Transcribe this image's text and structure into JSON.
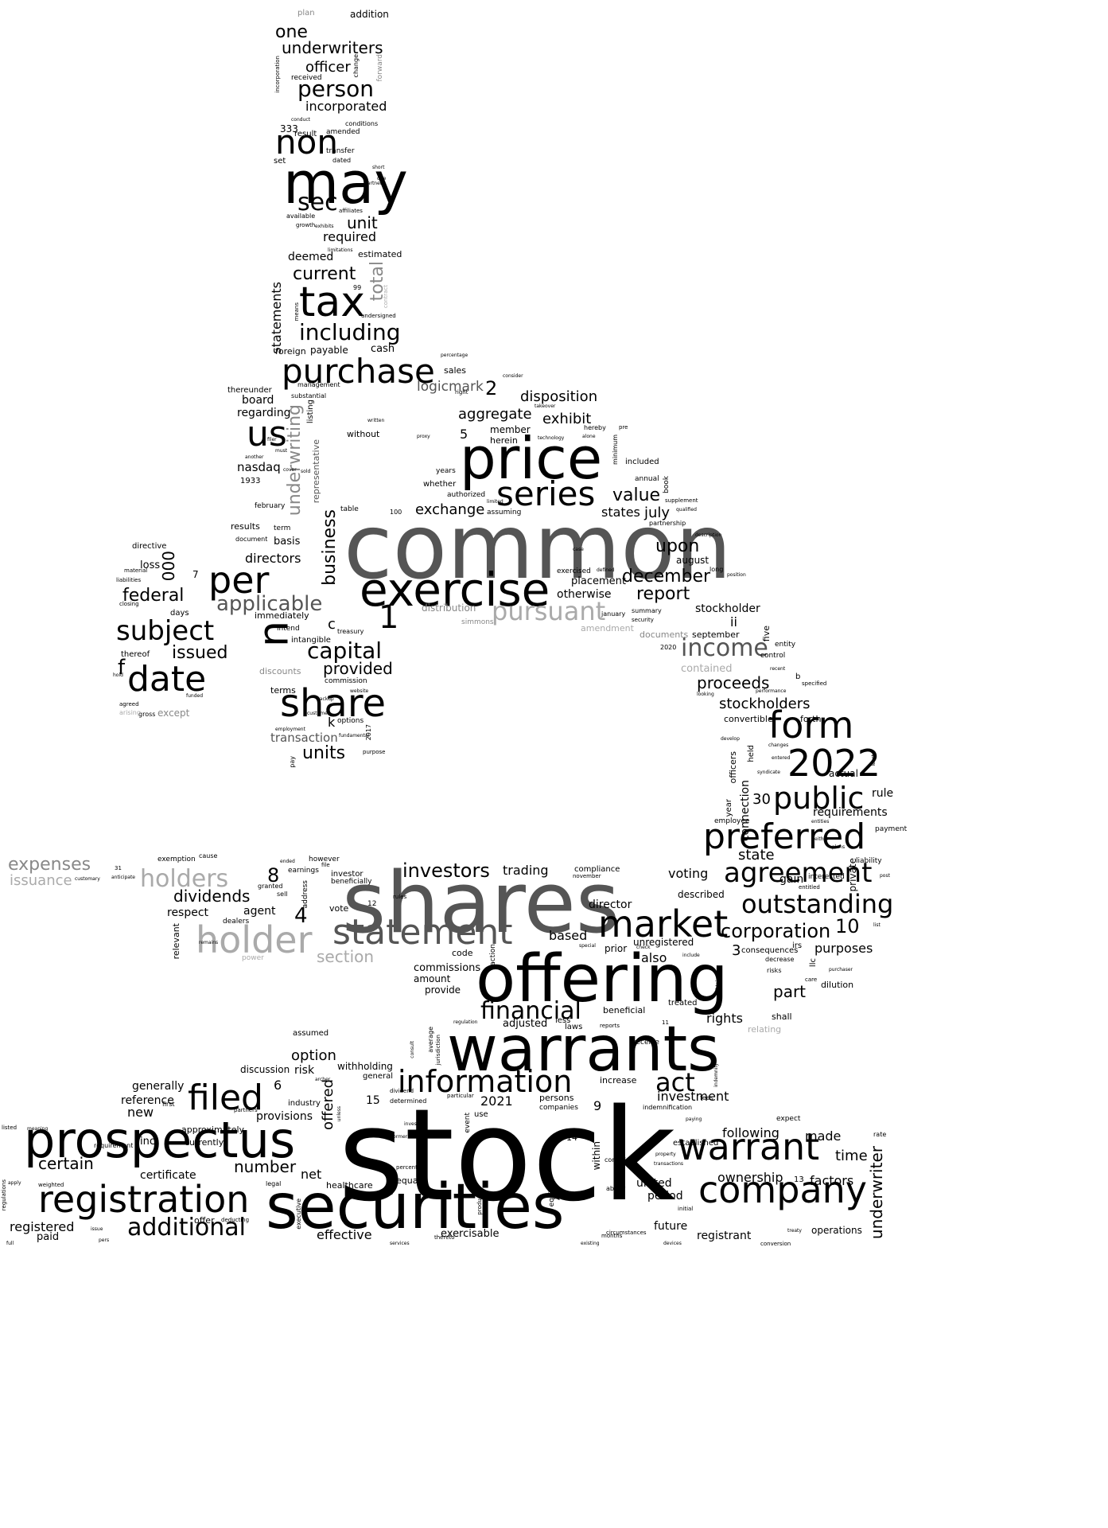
{
  "colors": {
    "background": "#ffffff",
    "ink": "#000000",
    "gray_dark": "#555555",
    "gray_mid": "#888888",
    "gray_light": "#aaaaaa"
  },
  "words": {
    "stock": "stock",
    "common": "common",
    "shares": "shares",
    "offering": "offering",
    "securities": "securities",
    "warrants": "warrants",
    "price": "price",
    "may": "may",
    "prospectus": "prospectus",
    "exercise": "exercise",
    "registration": "registration",
    "tax": "tax",
    "purchase": "purchase",
    "share": "share",
    "us": "us",
    "u": "u",
    "date": "date",
    "per": "per",
    "non": "non",
    "series": "series",
    "statement": "statement",
    "holder": "holder",
    "market": "market",
    "company": "company",
    "warrant": "warrant",
    "preferred": "preferred",
    "agreement": "agreement",
    "form": "form",
    "y2022": "2022",
    "public": "public",
    "filed": "filed",
    "information": "information",
    "outstanding": "outstanding",
    "subject": "subject",
    "pursuant": "pursuant",
    "income": "income",
    "including": "including",
    "capital": "capital",
    "additional": "additional",
    "financial": "financial",
    "investors": "investors",
    "act": "act",
    "holders": "holders",
    "applicable": "applicable",
    "corporation": "corporation",
    "one": "one",
    "underwriters": "underwriters",
    "officer": "officer",
    "person": "person",
    "incorporated": "incorporated",
    "sec": "sec",
    "unit": "unit",
    "required": "required",
    "current": "current",
    "total": "total",
    "statements": "statements",
    "payable": "payable",
    "cash": "cash",
    "foreign": "foreign",
    "deemed": "deemed",
    "estimated": "estimated",
    "n333": "333",
    "result": "result",
    "amended": "amended",
    "conditions": "conditions",
    "transfer": "transfer",
    "dated": "dated",
    "set": "set",
    "addition": "addition",
    "plan": "plan",
    "received": "received",
    "change": "change",
    "forward": "forward",
    "incorporation": "incorporation",
    "conduct": "conduct",
    "available": "available",
    "growth": "growth",
    "exhibits": "exhibits",
    "affiliates": "affiliates",
    "limitations": "limitations",
    "undersigned": "undersigned",
    "means": "means",
    "n99": "99",
    "contract": "contract",
    "logicmark": "logicmark",
    "n2": "2",
    "disposition": "disposition",
    "aggregate": "aggregate",
    "exhibit": "exhibit",
    "member": "member",
    "herein": "herein",
    "n5": "5",
    "hereby": "hereby",
    "sales": "sales",
    "management": "management",
    "board": "board",
    "thereunder": "thereunder",
    "substantial": "substantial",
    "regarding": "regarding",
    "underwriting": "underwriting",
    "representative": "representative",
    "listing": "listing",
    "without": "without",
    "business": "business",
    "nasdaq": "nasdaq",
    "n1933": "1933",
    "february": "february",
    "results": "results",
    "basis": "basis",
    "term": "term",
    "directors": "directors",
    "document": "document",
    "value": "value",
    "exchange": "exchange",
    "states": "states",
    "july": "july",
    "upon": "upon",
    "december": "december",
    "report": "report",
    "august": "august",
    "stockholder": "stockholder",
    "ii": "ii",
    "included": "included",
    "annual": "annual",
    "authorized": "authorized",
    "whether": "whether",
    "years": "years",
    "table": "table",
    "assuming": "assuming",
    "n100": "100",
    "partnership": "partnership",
    "book": "book",
    "minimum": "minimum",
    "n000": "000",
    "federal": "federal",
    "loss": "loss",
    "directive": "directive",
    "days": "days",
    "n7": "7",
    "f": "f",
    "issued": "issued",
    "n1": "1",
    "c": "c",
    "provided": "provided",
    "discounts": "discounts",
    "commission": "commission",
    "immediately": "immediately",
    "intend": "intend",
    "treasury": "treasury",
    "intangible": "intangible",
    "distribution": "distribution",
    "simmons": "simmons",
    "amendment": "amendment",
    "otherwise": "otherwise",
    "exercised": "exercised",
    "placement": "placement",
    "january": "january",
    "summary": "summary",
    "documents": "documents",
    "september": "september",
    "n2020": "2020",
    "contained": "contained",
    "proceeds": "proceeds",
    "stockholders": "stockholders",
    "convertible": "convertible",
    "forth": "forth",
    "five": "five",
    "entity": "entity",
    "control": "control",
    "terms": "terms",
    "transaction": "transaction",
    "units": "units",
    "k": "k",
    "options": "options",
    "n2017": "2017",
    "purpose": "purpose",
    "pay": "pay",
    "except": "except",
    "gross": "gross",
    "agreed": "agreed",
    "thereof": "thereof",
    "arising": "arising",
    "officers": "officers",
    "held": "held",
    "connection": "connection",
    "year": "year",
    "n30": "30",
    "actual": "actual",
    "rule": "rule",
    "requirements": "requirements",
    "employee": "employee",
    "state": "state",
    "gain": "gain",
    "interested": "interested",
    "private": "private",
    "liability": "liability",
    "payment": "payment",
    "voting": "voting",
    "described": "described",
    "n10": "10",
    "unregistered": "unregistered",
    "purposes": "purposes",
    "consequences": "consequences",
    "irs": "irs",
    "llc": "llc",
    "decrease": "decrease",
    "risks": "risks",
    "dilution": "dilution",
    "part": "part",
    "treated": "treated",
    "rights": "rights",
    "shall": "shall",
    "relating": "relating",
    "expenses": "expenses",
    "issuance": "issuance",
    "exemption": "exemption",
    "cause": "cause",
    "however": "however",
    "file": "file",
    "earnings": "earnings",
    "investor": "investor",
    "beneficially": "beneficially",
    "n8": "8",
    "granted": "granted",
    "sell": "sell",
    "dividends": "dividends",
    "agent": "agent",
    "respect": "respect",
    "n4": "4",
    "dealers": "dealers",
    "relevant": "relevant",
    "address": "address",
    "vote": "vote",
    "trading": "trading",
    "compliance": "compliance",
    "november": "november",
    "director": "director",
    "based": "based",
    "prior": "prior",
    "also": "also",
    "n3": "3",
    "section": "section",
    "code": "code",
    "commissions": "commissions",
    "amount": "amount",
    "provide": "provide",
    "power": "power",
    "adjusted": "adjusted",
    "laws": "laws",
    "less": "less",
    "beneficial": "beneficial",
    "reports": "reports",
    "assumed": "assumed",
    "option": "option",
    "discussion": "discussion",
    "risk": "risk",
    "withholding": "withholding",
    "general": "general",
    "offered": "offered",
    "generally": "generally",
    "reference": "reference",
    "n6": "6",
    "new": "new",
    "industry": "industry",
    "provisions": "provisions",
    "n15": "15",
    "n2021": "2021",
    "persons": "persons",
    "companies": "companies",
    "n9": "9",
    "increase": "increase",
    "investment": "investment",
    "indemnification": "indemnification",
    "inc": "inc",
    "approximately": "approximately",
    "currently": "currently",
    "certain": "certain",
    "number": "number",
    "certificate": "certificate",
    "net": "net",
    "healthcare": "healthcare",
    "legal": "legal",
    "equal": "equal",
    "effective": "effective",
    "exercisable": "exercisable",
    "within": "within",
    "united": "united",
    "period": "period",
    "future": "future",
    "registrant": "registrant",
    "operations": "operations",
    "following": "following",
    "made": "made",
    "time": "time",
    "ownership": "ownership",
    "factors": "factors",
    "n13": "13",
    "established": "established",
    "underwriter": "underwriter",
    "registered": "registered",
    "paid": "paid",
    "offer": "offer",
    "requirement": "requirement",
    "first": "first",
    "event": "event",
    "use": "use",
    "n14": "14",
    "expect": "expect",
    "n12": "12",
    "determined": "determined",
    "dividend": "dividend",
    "particular": "particular",
    "rules": "rules",
    "partners": "partners",
    "n11": "11",
    "receive": "receive",
    "condition": "condition",
    "ability": "ability",
    "rate": "rate",
    "listed": "listed",
    "fees": "fees",
    "security": "security",
    "consider": "consider",
    "right": "right",
    "takeover": "takeover",
    "technology": "technology",
    "percentage": "percentage",
    "pre": "pre",
    "supplement": "supplement",
    "qualified": "qualified",
    "description": "description",
    "position": "position",
    "long": "long",
    "defined": "defined",
    "case": "case",
    "limited": "limited",
    "material": "material",
    "liabilities": "liabilities",
    "closing": "closing",
    "hold": "hold",
    "funded": "funded",
    "website": "website",
    "backup": "backup",
    "customer": "customer",
    "employment": "employment",
    "fundamental": "fundamental",
    "b": "b",
    "specified": "specified",
    "performance": "performance",
    "recent": "recent",
    "looking": "looking",
    "develop": "develop",
    "changes": "changes",
    "entered": "entered",
    "syndicate": "syndicate",
    "least": "least",
    "either": "either",
    "entities": "entities",
    "plans": "plans",
    "post": "post",
    "list": "list",
    "purchaser": "purchaser",
    "care": "care",
    "entitled": "entitled",
    "treaty": "treaty",
    "initial": "initial",
    "conversion": "conversion",
    "months": "months",
    "thereto": "thereto",
    "issue": "issue",
    "deducting": "deducting",
    "full": "full",
    "pers": "pers",
    "services": "services",
    "devices": "devices",
    "existing": "existing",
    "circumstances": "circumstances",
    "jurisdiction": "jurisdiction",
    "average": "average",
    "consult": "consult",
    "effect": "effect",
    "percent": "percent",
    "executive": "executive",
    "products": "products",
    "apply": "apply",
    "weighted": "weighted",
    "regulations": "regulations",
    "anticipate": "anticipate",
    "customary": "customary",
    "n31": "31",
    "ended": "ended",
    "remains": "remains",
    "meaning": "meaning",
    "obtain": "obtain",
    "paying": "paying",
    "property": "property",
    "transactions": "transactions",
    "check": "check",
    "special": "special",
    "include": "include",
    "regulation": "regulation",
    "action": "action",
    "equity": "equity",
    "indemnify": "indemnify",
    "former": "former",
    "invest": "invest",
    "archer": "archer",
    "unless": "unless",
    "sold": "sold",
    "cover": "cover",
    "another": "another",
    "filer": "filer",
    "must": "must",
    "written": "written",
    "alone": "alone",
    "qualified2": "proxy",
    "partner": "partner",
    "short": "short",
    "due": "due"
  }
}
